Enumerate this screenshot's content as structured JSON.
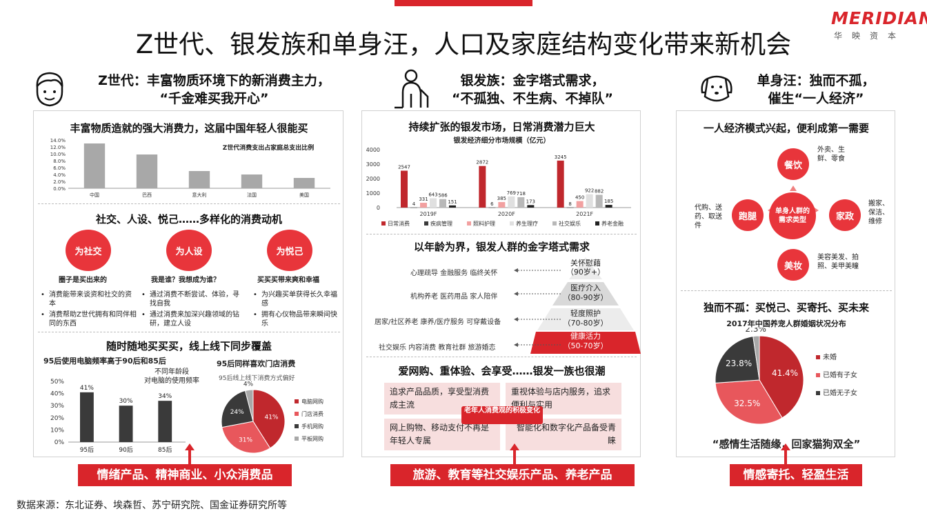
{
  "logo": {
    "main": "MERIDIAN",
    "sub": "华映资本"
  },
  "title": "Z世代、银发族和单身汪，人口及家庭结构变化带来新机会",
  "left": {
    "header_line1": "Z世代：丰富物质环境下的新消费主力，",
    "header_line2": "“千金难买我开心”",
    "s1_title": "丰富物质造就的强大消费力，这届中国年轻人很能买",
    "s1_chart_caption": "Z世代消费支出占家庭总支出比例",
    "s2_title": "社交、人设、悦己……多样化的消费动机",
    "circles": [
      "为社交",
      "为人设",
      "为悦己"
    ],
    "sub_heads": [
      "圈子是买出来的",
      "我是谁？我想成为谁？",
      "买买买带来爽和幸福"
    ],
    "bullets": [
      [
        "消费能带来谈资和社交的资本",
        "消费帮助Z世代拥有和同伴相同的东西"
      ],
      [
        "通过消费不断尝试、体验，寻找自我",
        "通过消费来加深兴趣领域的钻研，建立人设"
      ],
      [
        "为兴趣买单获得长久幸福感",
        "拥有心仪物品带来瞬间快乐"
      ]
    ],
    "s3_title": "随时随地买买买，线上线下同步覆盖",
    "bar2_title": "95后使用电脑频率高于90后和85后",
    "bar2_note1": "不同年龄段",
    "bar2_note2": "对电脑的使用频率",
    "pie_title": "95后同样喜欢门店消费",
    "pie_sub": "95后线上线下消费方式偏好",
    "bottom": "情绪产品、精神商业、小众消费品"
  },
  "mid": {
    "header_line1": "银发族：金字塔式需求，",
    "header_line2": "“不孤独、不生病、不掉队”",
    "s1_title": "持续扩张的银发市场，日常消费潜力巨大",
    "s1_sub": "银发经济细分市场规模（亿元）",
    "s2_title": "以年龄为界，银发人群的金字塔式需求",
    "pyr_levels": [
      "关怀慰藉",
      "（90岁+）",
      "医疗介入",
      "（80-90岁）",
      "轻度照护",
      "（70-80岁）",
      "健康活力",
      "（50-70岁）"
    ],
    "pyr_needs": [
      "心理疏导  金融服务  临终关怀",
      "机构养老  医药用品  家人陪伴",
      "居家/社区养老  康养/医疗服务  可穿戴设备",
      "社交娱乐  内容消费  教育社群  旅游婚恋"
    ],
    "s3_title": "爱网购、重体验、会享受……银发一族也很潮",
    "box1": "追求产品品质，享受型消费成主流",
    "box2": "重视体验与店内服务，追求便利与实用",
    "box3": "网上购物、移动支付不再是年轻人专属",
    "box4": "智能化和数字化产品备受青睐",
    "center_label": "老年人消费观的积极变化",
    "bottom": "旅游、教育等社交娱乐产品、养老产品"
  },
  "right": {
    "header_line1": "单身汪：独而不孤，",
    "header_line2": "催生“一人经济”",
    "s1_title": "一人经济模式兴起，便利成第一需要",
    "center": "单身人群的需求类型",
    "nodes": [
      "餐饮",
      "家政",
      "美妆",
      "跑腿"
    ],
    "node_notes": [
      "外卖、生鲜、零食",
      "搬家、保洁、维修",
      "美容美发、拍照、美甲美瞳",
      "代购、送药、取送件"
    ],
    "s2_title": "独而不孤：买悦己、买寄托、买未来",
    "pie_title": "2017年中国养宠人群婚姻状况分布",
    "quote": "“感情生活随缘，回家猫狗双全”",
    "bottom": "情感寄托、轻盈生活"
  },
  "source": "数据来源：东北证券、埃森哲、苏宁研究院、国金证券研究所等",
  "colors": {
    "red": "#d9252b",
    "dark": "#3a3a3a",
    "pink": "#f08080",
    "gray": "#a8a8a8"
  },
  "chart_data": [
    {
      "type": "bar",
      "title": "Z世代消费支出占家庭总支出比例",
      "categories": [
        "中国",
        "巴西",
        "意大利",
        "法国",
        "美国"
      ],
      "values": [
        13.0,
        9.8,
        5.0,
        4.0,
        3.0
      ],
      "ylim": [
        0,
        14
      ],
      "yticks": [
        "14.0%",
        "12.0%",
        "10.0%",
        "8.0%",
        "6.0%",
        "4.0%",
        "2.0%",
        "0.0%"
      ]
    },
    {
      "type": "bar",
      "title": "95后使用电脑频率高于90后和85后",
      "categories": [
        "95后",
        "90后",
        "85后"
      ],
      "values": [
        41,
        30,
        34
      ],
      "labels": [
        "41%",
        "30%",
        "34%"
      ],
      "ylim": [
        0,
        50
      ],
      "yticks": [
        "50%",
        "40%",
        "30%",
        "20%",
        "10%",
        "0%"
      ]
    },
    {
      "type": "pie",
      "title": "95后线上线下消费方式偏好",
      "series": [
        {
          "name": "电脑网购",
          "value": 41,
          "label": "41%",
          "color": "#c0282d"
        },
        {
          "name": "门店消费",
          "value": 31,
          "label": "31%",
          "color": "#e8575c"
        },
        {
          "name": "手机网购",
          "value": 24,
          "label": "24%",
          "color": "#3a3a3a"
        },
        {
          "name": "平板网购",
          "value": 4,
          "label": "4%",
          "color": "#a8a8a8"
        }
      ]
    },
    {
      "type": "bar",
      "title": "银发经济细分市场规模（亿元）",
      "categories": [
        "2019F",
        "2020F",
        "2021F"
      ],
      "series": [
        {
          "name": "日常消费",
          "color": "#c0282d",
          "values": [
            2547,
            2872,
            3245
          ]
        },
        {
          "name": "疾病管理",
          "color": "#3a3a3a",
          "values": [
            4,
            6,
            8
          ]
        },
        {
          "name": "照料护理",
          "color": "#f2a0a0",
          "values": [
            331,
            385,
            450
          ]
        },
        {
          "name": "养生理疗",
          "color": "#e0e0e0",
          "values": [
            643,
            769,
            922
          ]
        },
        {
          "name": "社交娱乐",
          "color": "#b8b8b8",
          "values": [
            586,
            718,
            882
          ]
        },
        {
          "name": "养老金融",
          "color": "#222222",
          "values": [
            151,
            173,
            185
          ]
        }
      ],
      "ylim": [
        0,
        4000
      ],
      "yticks": [
        "4000",
        "3000",
        "2000",
        "1000",
        "0"
      ]
    },
    {
      "type": "pie",
      "title": "2017年中国养宠人群婚姻状况分布",
      "series": [
        {
          "name": "未婚",
          "value": 41.4,
          "label": "41.4%",
          "color": "#c0282d"
        },
        {
          "name": "已婚有子女",
          "value": 32.5,
          "label": "32.5%",
          "color": "#e8575c"
        },
        {
          "name": "已婚无子女",
          "value": 23.8,
          "label": "23.8%",
          "color": "#3a3a3a"
        },
        {
          "name": "",
          "value": 2.3,
          "label": "2.3%",
          "color": "#a8a8a8"
        }
      ]
    }
  ]
}
